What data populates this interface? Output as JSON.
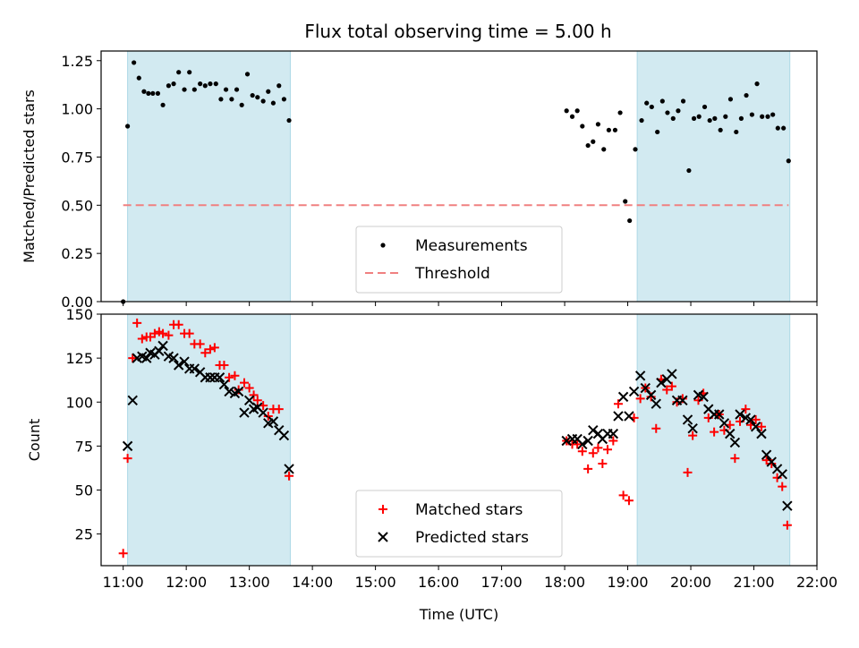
{
  "figure": {
    "title": "Flux total observing time = 5.00 h"
  },
  "chart_data": [
    {
      "type": "scatter",
      "ylabel": "Matched/Predicted stars",
      "ylim": [
        0,
        1.3
      ],
      "xlim": [
        10.65,
        22.0
      ],
      "yticks": [
        0.0,
        0.25,
        0.5,
        0.75,
        1.0,
        1.25
      ],
      "ytick_labels": [
        "0.00",
        "0.25",
        "0.50",
        "0.75",
        "1.00",
        "1.25"
      ],
      "shaded_intervals": [
        [
          11.07,
          13.65
        ],
        [
          19.15,
          21.57
        ]
      ],
      "shade_color": "#add8e6",
      "legend_position": "lower center",
      "threshold": {
        "name": "Threshold",
        "value": 0.5,
        "x_range": [
          11.0,
          21.55
        ],
        "color": "#f08080"
      },
      "series": [
        {
          "name": "Measurements",
          "color": "#000000",
          "marker": "dot",
          "points": [
            [
              11.0,
              0.0
            ],
            [
              11.07,
              0.91
            ],
            [
              11.17,
              1.24
            ],
            [
              11.25,
              1.16
            ],
            [
              11.33,
              1.09
            ],
            [
              11.4,
              1.08
            ],
            [
              11.47,
              1.08
            ],
            [
              11.55,
              1.08
            ],
            [
              11.63,
              1.02
            ],
            [
              11.72,
              1.12
            ],
            [
              11.8,
              1.13
            ],
            [
              11.88,
              1.19
            ],
            [
              11.97,
              1.1
            ],
            [
              12.05,
              1.19
            ],
            [
              12.13,
              1.1
            ],
            [
              12.22,
              1.13
            ],
            [
              12.3,
              1.12
            ],
            [
              12.38,
              1.13
            ],
            [
              12.47,
              1.13
            ],
            [
              12.55,
              1.05
            ],
            [
              12.63,
              1.1
            ],
            [
              12.72,
              1.05
            ],
            [
              12.8,
              1.1
            ],
            [
              12.88,
              1.02
            ],
            [
              12.97,
              1.18
            ],
            [
              13.05,
              1.07
            ],
            [
              13.13,
              1.06
            ],
            [
              13.22,
              1.04
            ],
            [
              13.3,
              1.09
            ],
            [
              13.38,
              1.03
            ],
            [
              13.47,
              1.12
            ],
            [
              13.55,
              1.05
            ],
            [
              13.63,
              0.94
            ],
            [
              18.03,
              0.99
            ],
            [
              18.12,
              0.96
            ],
            [
              18.2,
              0.99
            ],
            [
              18.28,
              0.91
            ],
            [
              18.37,
              0.81
            ],
            [
              18.45,
              0.83
            ],
            [
              18.53,
              0.92
            ],
            [
              18.62,
              0.79
            ],
            [
              18.7,
              0.89
            ],
            [
              18.8,
              0.89
            ],
            [
              18.88,
              0.98
            ],
            [
              18.96,
              0.52
            ],
            [
              19.03,
              0.42
            ],
            [
              19.12,
              0.79
            ],
            [
              19.22,
              0.94
            ],
            [
              19.3,
              1.03
            ],
            [
              19.38,
              1.01
            ],
            [
              19.47,
              0.88
            ],
            [
              19.55,
              1.04
            ],
            [
              19.63,
              0.98
            ],
            [
              19.72,
              0.95
            ],
            [
              19.8,
              0.99
            ],
            [
              19.88,
              1.04
            ],
            [
              19.97,
              0.68
            ],
            [
              20.05,
              0.95
            ],
            [
              20.13,
              0.96
            ],
            [
              20.22,
              1.01
            ],
            [
              20.3,
              0.94
            ],
            [
              20.38,
              0.95
            ],
            [
              20.47,
              0.89
            ],
            [
              20.55,
              0.96
            ],
            [
              20.63,
              1.05
            ],
            [
              20.72,
              0.88
            ],
            [
              20.8,
              0.95
            ],
            [
              20.88,
              1.07
            ],
            [
              20.97,
              0.97
            ],
            [
              21.05,
              1.13
            ],
            [
              21.13,
              0.96
            ],
            [
              21.22,
              0.96
            ],
            [
              21.3,
              0.97
            ],
            [
              21.38,
              0.9
            ],
            [
              21.47,
              0.9
            ],
            [
              21.55,
              0.73
            ]
          ]
        }
      ],
      "grid": false
    },
    {
      "type": "scatter",
      "xlabel": "Time (UTC)",
      "ylabel": "Count",
      "ylim": [
        7,
        150
      ],
      "xlim": [
        10.65,
        22.0
      ],
      "yticks": [
        25,
        50,
        75,
        100,
        125,
        150
      ],
      "ytick_labels": [
        "25",
        "50",
        "75",
        "100",
        "125",
        "150"
      ],
      "xticks": [
        11,
        12,
        13,
        14,
        15,
        16,
        17,
        18,
        19,
        20,
        21,
        22
      ],
      "xtick_labels": [
        "11:00",
        "12:00",
        "13:00",
        "14:00",
        "15:00",
        "16:00",
        "17:00",
        "18:00",
        "19:00",
        "20:00",
        "21:00",
        "22:00"
      ],
      "shaded_intervals": [
        [
          11.07,
          13.65
        ],
        [
          19.15,
          21.57
        ]
      ],
      "shade_color": "#add8e6",
      "legend_position": "lower center",
      "series": [
        {
          "name": "Matched stars",
          "color": "#ff0000",
          "marker": "plus",
          "points": [
            [
              11.0,
              14
            ],
            [
              11.07,
              68
            ],
            [
              11.15,
              125
            ],
            [
              11.22,
              145
            ],
            [
              11.3,
              136
            ],
            [
              11.37,
              137
            ],
            [
              11.43,
              137
            ],
            [
              11.5,
              139
            ],
            [
              11.57,
              140
            ],
            [
              11.63,
              139
            ],
            [
              11.72,
              138
            ],
            [
              11.8,
              144
            ],
            [
              11.88,
              144
            ],
            [
              11.97,
              139
            ],
            [
              12.05,
              139
            ],
            [
              12.13,
              133
            ],
            [
              12.22,
              133
            ],
            [
              12.3,
              128
            ],
            [
              12.38,
              130
            ],
            [
              12.45,
              131
            ],
            [
              12.53,
              121
            ],
            [
              12.6,
              121
            ],
            [
              12.68,
              114
            ],
            [
              12.77,
              115
            ],
            [
              12.83,
              107
            ],
            [
              12.92,
              111
            ],
            [
              13.0,
              108
            ],
            [
              13.07,
              104
            ],
            [
              13.13,
              101
            ],
            [
              13.22,
              98
            ],
            [
              13.3,
              92
            ],
            [
              13.38,
              96
            ],
            [
              13.47,
              96
            ],
            [
              13.63,
              58
            ],
            [
              18.03,
              78
            ],
            [
              18.12,
              76
            ],
            [
              18.2,
              76
            ],
            [
              18.28,
              72
            ],
            [
              18.37,
              62
            ],
            [
              18.45,
              71
            ],
            [
              18.53,
              74
            ],
            [
              18.6,
              65
            ],
            [
              18.68,
              73
            ],
            [
              18.77,
              78
            ],
            [
              18.85,
              99
            ],
            [
              18.93,
              47
            ],
            [
              19.02,
              44
            ],
            [
              19.1,
              91
            ],
            [
              19.2,
              102
            ],
            [
              19.28,
              108
            ],
            [
              19.37,
              103
            ],
            [
              19.45,
              85
            ],
            [
              19.53,
              113
            ],
            [
              19.62,
              107
            ],
            [
              19.7,
              109
            ],
            [
              19.78,
              100
            ],
            [
              19.87,
              102
            ],
            [
              19.95,
              60
            ],
            [
              20.03,
              81
            ],
            [
              20.12,
              101
            ],
            [
              20.2,
              105
            ],
            [
              20.28,
              91
            ],
            [
              20.37,
              83
            ],
            [
              20.45,
              93
            ],
            [
              20.53,
              84
            ],
            [
              20.62,
              87
            ],
            [
              20.7,
              68
            ],
            [
              20.78,
              89
            ],
            [
              20.87,
              96
            ],
            [
              20.95,
              87
            ],
            [
              21.03,
              90
            ],
            [
              21.12,
              86
            ],
            [
              21.2,
              67
            ],
            [
              21.28,
              65
            ],
            [
              21.37,
              57
            ],
            [
              21.45,
              52
            ],
            [
              21.53,
              30
            ]
          ]
        },
        {
          "name": "Predicted stars",
          "color": "#000000",
          "marker": "x",
          "points": [
            [
              11.07,
              75
            ],
            [
              11.15,
              101
            ],
            [
              11.22,
              125
            ],
            [
              11.3,
              126
            ],
            [
              11.37,
              125
            ],
            [
              11.43,
              128
            ],
            [
              11.5,
              127
            ],
            [
              11.57,
              129
            ],
            [
              11.63,
              132
            ],
            [
              11.72,
              126
            ],
            [
              11.8,
              125
            ],
            [
              11.88,
              121
            ],
            [
              11.97,
              123
            ],
            [
              12.05,
              119
            ],
            [
              12.13,
              119
            ],
            [
              12.22,
              117
            ],
            [
              12.3,
              114
            ],
            [
              12.38,
              114
            ],
            [
              12.45,
              114
            ],
            [
              12.53,
              114
            ],
            [
              12.6,
              110
            ],
            [
              12.68,
              106
            ],
            [
              12.77,
              105
            ],
            [
              12.83,
              106
            ],
            [
              12.92,
              94
            ],
            [
              13.0,
              101
            ],
            [
              13.07,
              96
            ],
            [
              13.13,
              97
            ],
            [
              13.22,
              94
            ],
            [
              13.3,
              88
            ],
            [
              13.38,
              89
            ],
            [
              13.47,
              84
            ],
            [
              13.55,
              81
            ],
            [
              13.63,
              62
            ],
            [
              18.03,
              78
            ],
            [
              18.12,
              79
            ],
            [
              18.2,
              79
            ],
            [
              18.28,
              76
            ],
            [
              18.37,
              78
            ],
            [
              18.45,
              84
            ],
            [
              18.53,
              82
            ],
            [
              18.6,
              79
            ],
            [
              18.68,
              82
            ],
            [
              18.77,
              82
            ],
            [
              18.85,
              92
            ],
            [
              18.93,
              103
            ],
            [
              19.02,
              92
            ],
            [
              19.1,
              106
            ],
            [
              19.2,
              115
            ],
            [
              19.28,
              108
            ],
            [
              19.37,
              104
            ],
            [
              19.45,
              99
            ],
            [
              19.53,
              111
            ],
            [
              19.62,
              113
            ],
            [
              19.7,
              116
            ],
            [
              19.78,
              101
            ],
            [
              19.87,
              101
            ],
            [
              19.95,
              90
            ],
            [
              20.03,
              85
            ],
            [
              20.12,
              104
            ],
            [
              20.2,
              103
            ],
            [
              20.28,
              96
            ],
            [
              20.37,
              93
            ],
            [
              20.45,
              93
            ],
            [
              20.53,
              88
            ],
            [
              20.62,
              82
            ],
            [
              20.7,
              77
            ],
            [
              20.78,
              93
            ],
            [
              20.87,
              91
            ],
            [
              20.95,
              90
            ],
            [
              21.03,
              86
            ],
            [
              21.12,
              82
            ],
            [
              21.2,
              70
            ],
            [
              21.28,
              66
            ],
            [
              21.37,
              62
            ],
            [
              21.45,
              59
            ],
            [
              21.53,
              41
            ]
          ]
        }
      ],
      "grid": false
    }
  ]
}
